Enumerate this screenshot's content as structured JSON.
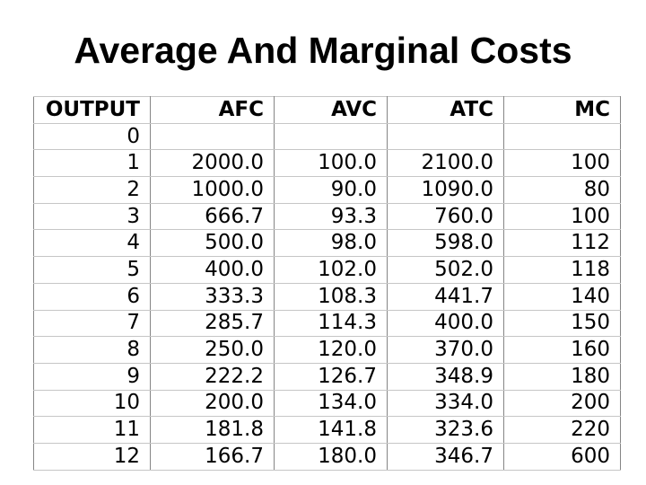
{
  "title": "Average And Marginal Costs",
  "table": {
    "columns": [
      {
        "key": "output",
        "label": "OUTPUT"
      },
      {
        "key": "afc",
        "label": "AFC"
      },
      {
        "key": "avc",
        "label": "AVC"
      },
      {
        "key": "atc",
        "label": "ATC"
      },
      {
        "key": "mc",
        "label": "MC"
      }
    ],
    "rows": [
      [
        "0",
        "",
        "",
        "",
        ""
      ],
      [
        "1",
        "2000.0",
        "100.0",
        "2100.0",
        "100"
      ],
      [
        "2",
        "1000.0",
        "90.0",
        "1090.0",
        "80"
      ],
      [
        "3",
        "666.7",
        "93.3",
        "760.0",
        "100"
      ],
      [
        "4",
        "500.0",
        "98.0",
        "598.0",
        "112"
      ],
      [
        "5",
        "400.0",
        "102.0",
        "502.0",
        "118"
      ],
      [
        "6",
        "333.3",
        "108.3",
        "441.7",
        "140"
      ],
      [
        "7",
        "285.7",
        "114.3",
        "400.0",
        "150"
      ],
      [
        "8",
        "250.0",
        "120.0",
        "370.0",
        "160"
      ],
      [
        "9",
        "222.2",
        "126.7",
        "348.9",
        "180"
      ],
      [
        "10",
        "200.0",
        "134.0",
        "334.0",
        "200"
      ],
      [
        "11",
        "181.8",
        "141.8",
        "323.6",
        "220"
      ],
      [
        "12",
        "166.7",
        "180.0",
        "346.7",
        "600"
      ]
    ]
  },
  "colors": {
    "background": "#ffffff",
    "text": "#000000",
    "grid_vertical": "#858585",
    "grid_horizontal": "#c6c6c6"
  }
}
